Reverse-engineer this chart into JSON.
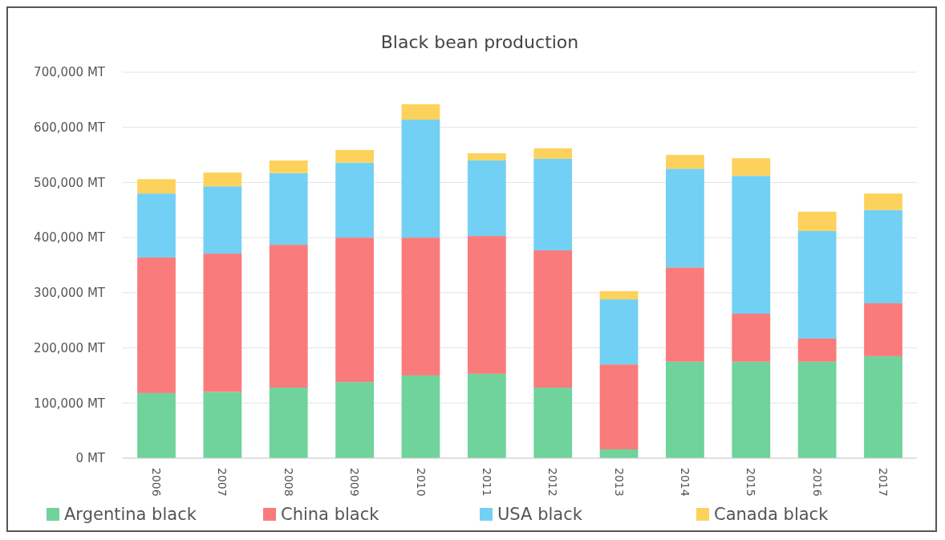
{
  "chart_data": {
    "type": "bar",
    "stacked": true,
    "title": "Black bean production",
    "categories": [
      "2006",
      "2007",
      "2008",
      "2009",
      "2010",
      "2011",
      "2012",
      "2013",
      "2014",
      "2015",
      "2016",
      "2017"
    ],
    "series": [
      {
        "name": "Argentina black",
        "color": "#6fd39b",
        "values": [
          118000,
          120000,
          128000,
          138000,
          150000,
          153000,
          128000,
          16000,
          175000,
          175000,
          175000,
          185000
        ]
      },
      {
        "name": "China black",
        "color": "#fa7b7b",
        "values": [
          246000,
          251000,
          259000,
          262000,
          250000,
          250000,
          249000,
          154000,
          171000,
          87000,
          42000,
          96000
        ]
      },
      {
        "name": "USA black",
        "color": "#72d0f5",
        "values": [
          116000,
          122000,
          130000,
          136000,
          214000,
          137000,
          166000,
          118000,
          179000,
          250000,
          195000,
          169000
        ]
      },
      {
        "name": "Canada black",
        "color": "#fdd25c",
        "values": [
          26000,
          25000,
          23000,
          23000,
          28000,
          13000,
          19000,
          15000,
          25000,
          32000,
          35000,
          30000
        ]
      }
    ],
    "ylim": [
      0,
      700000
    ],
    "yticks": [
      {
        "value": 0,
        "label": "0 MT"
      },
      {
        "value": 100000,
        "label": "100,000 MT"
      },
      {
        "value": 200000,
        "label": "200,000 MT"
      },
      {
        "value": 300000,
        "label": "300,000 MT"
      },
      {
        "value": 400000,
        "label": "400,000 MT"
      },
      {
        "value": 500000,
        "label": "500,000 MT"
      },
      {
        "value": 600000,
        "label": "600,000 MT"
      },
      {
        "value": 700000,
        "label": "700,000 MT"
      }
    ],
    "grid": "y",
    "legend": "bottom"
  }
}
